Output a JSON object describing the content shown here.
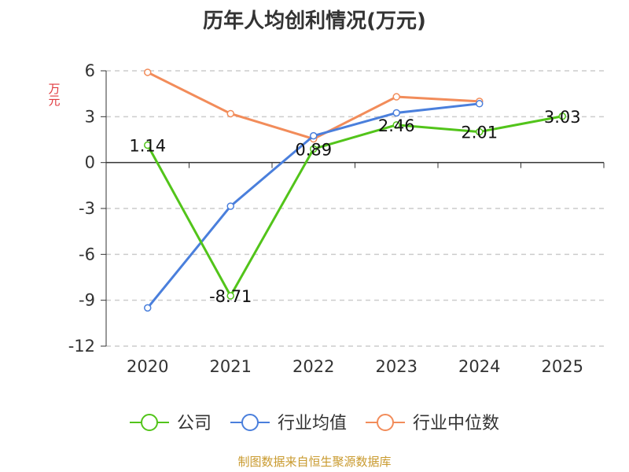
{
  "chart_data": {
    "type": "line",
    "title": "历年人均创利情况(万元)",
    "ylabel": "万元",
    "categories": [
      "2020",
      "2021",
      "2022",
      "2023",
      "2024",
      "2025"
    ],
    "ylim": [
      -12,
      6
    ],
    "yticks": [
      6,
      3,
      0,
      -3,
      -6,
      -9,
      -12
    ],
    "grid": true,
    "legend_position": "bottom",
    "series": [
      {
        "name": "公司",
        "color": "#52c41a",
        "values": [
          1.14,
          -8.71,
          0.89,
          2.46,
          2.01,
          3.03
        ],
        "labels": [
          "1.14",
          "-8.71",
          "0.89",
          "2.46",
          "2.01",
          "3.03"
        ]
      },
      {
        "name": "行业均值",
        "color": "#4a7fdc",
        "values": [
          -9.5,
          -2.85,
          1.75,
          3.25,
          3.85,
          null
        ]
      },
      {
        "name": "行业中位数",
        "color": "#f28c5a",
        "values": [
          5.9,
          3.2,
          1.55,
          4.3,
          4.0,
          null
        ]
      }
    ]
  },
  "footer": "制图数据来自恒生聚源数据库"
}
